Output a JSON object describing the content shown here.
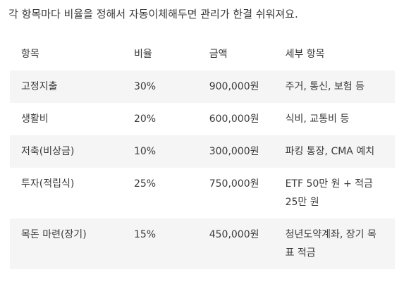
{
  "intro": "각 항목마다 비율을 정해서 자동이체해두면 관리가 한결 쉬워져요.",
  "table": {
    "headers": [
      "항목",
      "비율",
      "금액",
      "세부 항목"
    ],
    "rows": [
      {
        "item": "고정지출",
        "ratio": "30%",
        "amount": "900,000원",
        "detail": "주거, 통신, 보험 등"
      },
      {
        "item": "생활비",
        "ratio": "20%",
        "amount": "600,000원",
        "detail": "식비, 교통비 등"
      },
      {
        "item": "저축(비상금)",
        "ratio": "10%",
        "amount": "300,000원",
        "detail": "파킹 통장, CMA 예치"
      },
      {
        "item": "투자(적립식)",
        "ratio": "25%",
        "amount": "750,000원",
        "detail": "ETF 50만 원 + 적금 25만 원"
      },
      {
        "item": "목돈 마련(장기)",
        "ratio": "15%",
        "amount": "450,000원",
        "detail": "청년도약계좌, 장기 목표 적금"
      }
    ]
  }
}
